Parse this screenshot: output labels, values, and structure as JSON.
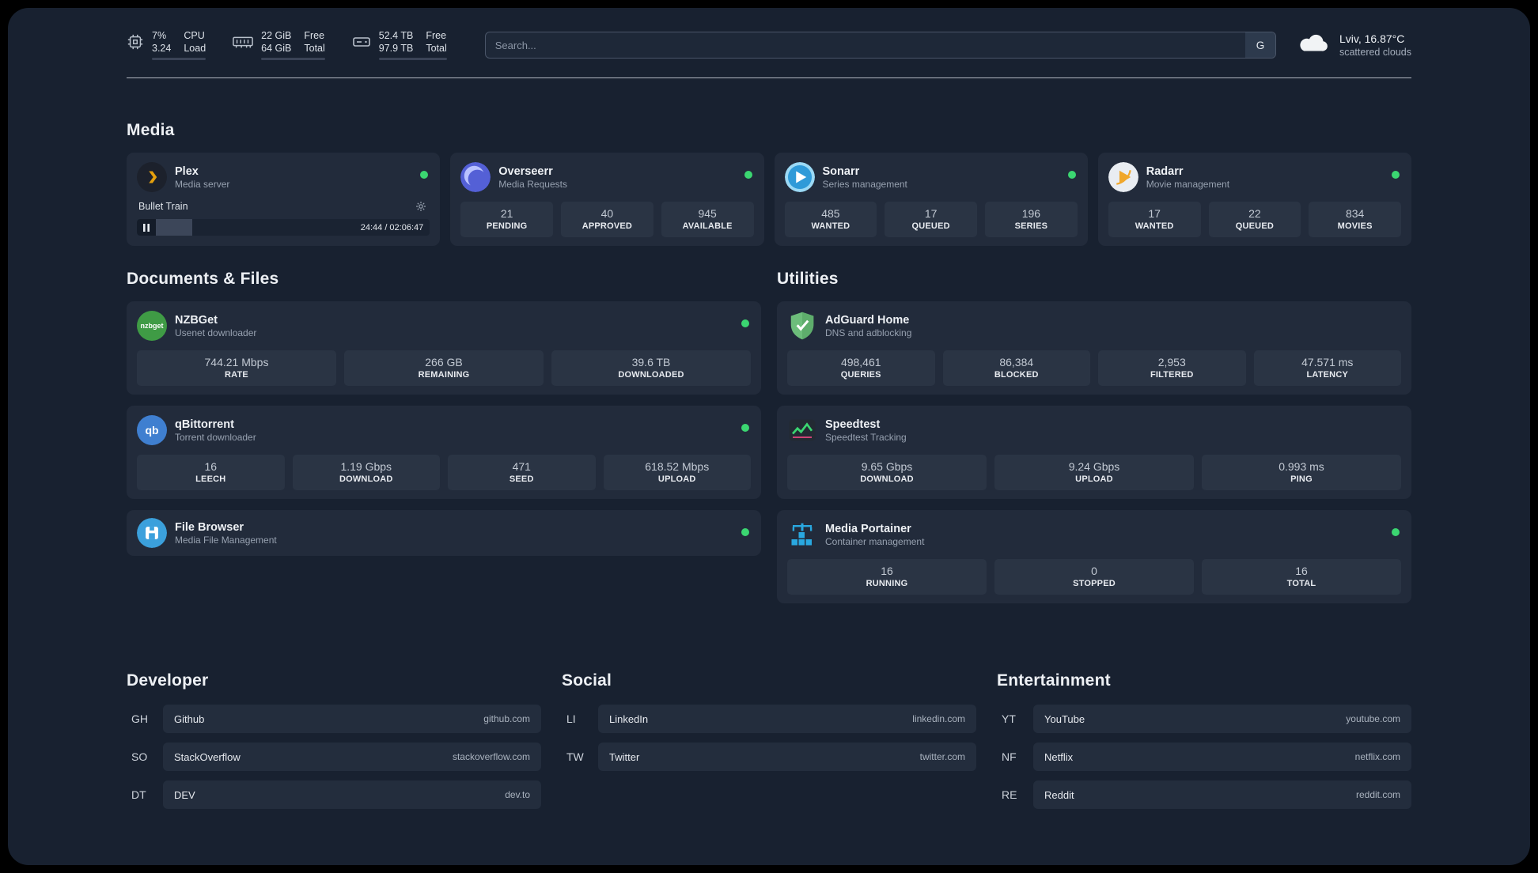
{
  "colors": {
    "status-online": "#3bd671"
  },
  "header": {
    "metrics": [
      {
        "icon": "cpu-icon",
        "values": [
          "7%",
          "3.24"
        ],
        "labels": [
          "CPU",
          "Load"
        ],
        "progress": 8
      },
      {
        "icon": "ram-icon",
        "values": [
          "22 GiB",
          "64 GiB"
        ],
        "labels": [
          "Free",
          "Total"
        ],
        "progress": 66
      },
      {
        "icon": "disk-icon",
        "values": [
          "52.4 TB",
          "97.9 TB"
        ],
        "labels": [
          "Free",
          "Total"
        ],
        "progress": 47
      }
    ],
    "search": {
      "placeholder": "Search...",
      "engine": "G"
    },
    "weather": {
      "location": "Lviv, 16.87°C",
      "condition": "scattered clouds"
    }
  },
  "media": {
    "title": "Media",
    "plex": {
      "name": "Plex",
      "desc": "Media server",
      "now_playing": "Bullet Train",
      "time": "24:44 / 02:06:47",
      "progress": 19
    },
    "overseerr": {
      "name": "Overseerr",
      "desc": "Media Requests",
      "stats": [
        {
          "value": "21",
          "label": "PENDING"
        },
        {
          "value": "40",
          "label": "APPROVED"
        },
        {
          "value": "945",
          "label": "AVAILABLE"
        }
      ]
    },
    "sonarr": {
      "name": "Sonarr",
      "desc": "Series management",
      "stats": [
        {
          "value": "485",
          "label": "WANTED"
        },
        {
          "value": "17",
          "label": "QUEUED"
        },
        {
          "value": "196",
          "label": "SERIES"
        }
      ]
    },
    "radarr": {
      "name": "Radarr",
      "desc": "Movie management",
      "stats": [
        {
          "value": "17",
          "label": "WANTED"
        },
        {
          "value": "22",
          "label": "QUEUED"
        },
        {
          "value": "834",
          "label": "MOVIES"
        }
      ]
    }
  },
  "documents": {
    "title": "Documents & Files",
    "nzbget": {
      "name": "NZBGet",
      "desc": "Usenet downloader",
      "icon_text": "nzbget",
      "stats": [
        {
          "value": "744.21 Mbps",
          "label": "RATE"
        },
        {
          "value": "266 GB",
          "label": "REMAINING"
        },
        {
          "value": "39.6 TB",
          "label": "DOWNLOADED"
        }
      ]
    },
    "qbittorrent": {
      "name": "qBittorrent",
      "desc": "Torrent downloader",
      "icon_text": "qb",
      "stats": [
        {
          "value": "16",
          "label": "LEECH"
        },
        {
          "value": "1.19 Gbps",
          "label": "DOWNLOAD"
        },
        {
          "value": "471",
          "label": "SEED"
        },
        {
          "value": "618.52 Mbps",
          "label": "UPLOAD"
        }
      ]
    },
    "filebrowser": {
      "name": "File Browser",
      "desc": "Media File Management"
    }
  },
  "utilities": {
    "title": "Utilities",
    "adguard": {
      "name": "AdGuard Home",
      "desc": "DNS and adblocking",
      "stats": [
        {
          "value": "498,461",
          "label": "QUERIES"
        },
        {
          "value": "86,384",
          "label": "BLOCKED"
        },
        {
          "value": "2,953",
          "label": "FILTERED"
        },
        {
          "value": "47.571 ms",
          "label": "LATENCY"
        }
      ]
    },
    "speedtest": {
      "name": "Speedtest",
      "desc": "Speedtest Tracking",
      "stats": [
        {
          "value": "9.65 Gbps",
          "label": "DOWNLOAD"
        },
        {
          "value": "9.24 Gbps",
          "label": "UPLOAD"
        },
        {
          "value": "0.993 ms",
          "label": "PING"
        }
      ]
    },
    "portainer": {
      "name": "Media Portainer",
      "desc": "Container management",
      "stats": [
        {
          "value": "16",
          "label": "RUNNING"
        },
        {
          "value": "0",
          "label": "STOPPED"
        },
        {
          "value": "16",
          "label": "TOTAL"
        }
      ]
    }
  },
  "bookmarks": [
    {
      "title": "Developer",
      "items": [
        {
          "abbr": "GH",
          "name": "Github",
          "url": "github.com"
        },
        {
          "abbr": "SO",
          "name": "StackOverflow",
          "url": "stackoverflow.com"
        },
        {
          "abbr": "DT",
          "name": "DEV",
          "url": "dev.to"
        }
      ]
    },
    {
      "title": "Social",
      "items": [
        {
          "abbr": "LI",
          "name": "LinkedIn",
          "url": "linkedin.com"
        },
        {
          "abbr": "TW",
          "name": "Twitter",
          "url": "twitter.com"
        }
      ]
    },
    {
      "title": "Entertainment",
      "items": [
        {
          "abbr": "YT",
          "name": "YouTube",
          "url": "youtube.com"
        },
        {
          "abbr": "NF",
          "name": "Netflix",
          "url": "netflix.com"
        },
        {
          "abbr": "RE",
          "name": "Reddit",
          "url": "reddit.com"
        }
      ]
    }
  ]
}
